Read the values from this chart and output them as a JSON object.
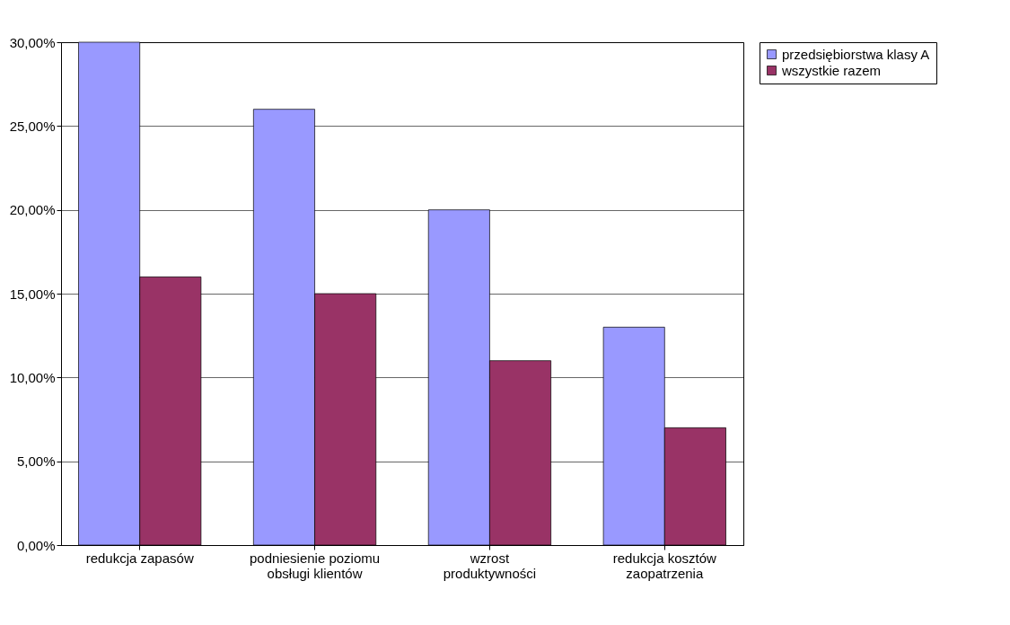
{
  "chart_data": {
    "type": "bar",
    "categories": [
      "redukcja zapasów",
      "podniesienie poziomu obsługi klientów",
      "wzrost produktywności",
      "redukcja kosztów zaopatrzenia"
    ],
    "series": [
      {
        "name": "przedsiębiorstwa klasy A",
        "color": "#9999ff",
        "values": [
          30,
          26,
          20,
          13
        ]
      },
      {
        "name": "wszystkie razem",
        "color": "#993366",
        "values": [
          16,
          15,
          11,
          7
        ]
      }
    ],
    "ylim": [
      0,
      30
    ],
    "yticks": [
      {
        "value": 0,
        "label": "0,00%"
      },
      {
        "value": 5,
        "label": "5,00%"
      },
      {
        "value": 10,
        "label": "10,00%"
      },
      {
        "value": 15,
        "label": "15,00%"
      },
      {
        "value": 20,
        "label": "20,00%"
      },
      {
        "value": 25,
        "label": "25,00%"
      },
      {
        "value": 30,
        "label": "30,00%"
      }
    ],
    "grid": "y",
    "legend": "right"
  }
}
